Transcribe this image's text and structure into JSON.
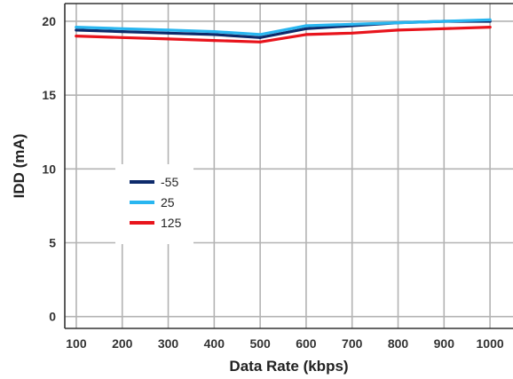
{
  "chart_data": {
    "type": "line",
    "xlabel": "Data Rate (kbps)",
    "ylabel": "IDD (mA)",
    "x": [
      100,
      200,
      300,
      400,
      500,
      600,
      700,
      800,
      900,
      1000
    ],
    "x_tick_labels": [
      "100",
      "200",
      "300",
      "400",
      "500",
      "600",
      "700",
      "800",
      "900",
      "1000"
    ],
    "y_tick_labels": [
      "0",
      "5",
      "10",
      "15",
      "20"
    ],
    "xlim": [
      75,
      1050
    ],
    "ylim": [
      -0.8,
      21.2
    ],
    "grid": true,
    "legend_position": "left-middle",
    "series": [
      {
        "name": "-55",
        "color": "#0d2a6b",
        "values": [
          19.4,
          19.3,
          19.2,
          19.1,
          18.9,
          19.5,
          19.7,
          19.9,
          20.0,
          20.0
        ]
      },
      {
        "name": "25",
        "color": "#29b6f0",
        "values": [
          19.6,
          19.5,
          19.4,
          19.3,
          19.1,
          19.7,
          19.8,
          19.9,
          20.0,
          20.1
        ]
      },
      {
        "name": "125",
        "color": "#e8141c",
        "values": [
          19.0,
          18.9,
          18.8,
          18.7,
          18.6,
          19.1,
          19.2,
          19.4,
          19.5,
          19.6
        ]
      }
    ]
  }
}
